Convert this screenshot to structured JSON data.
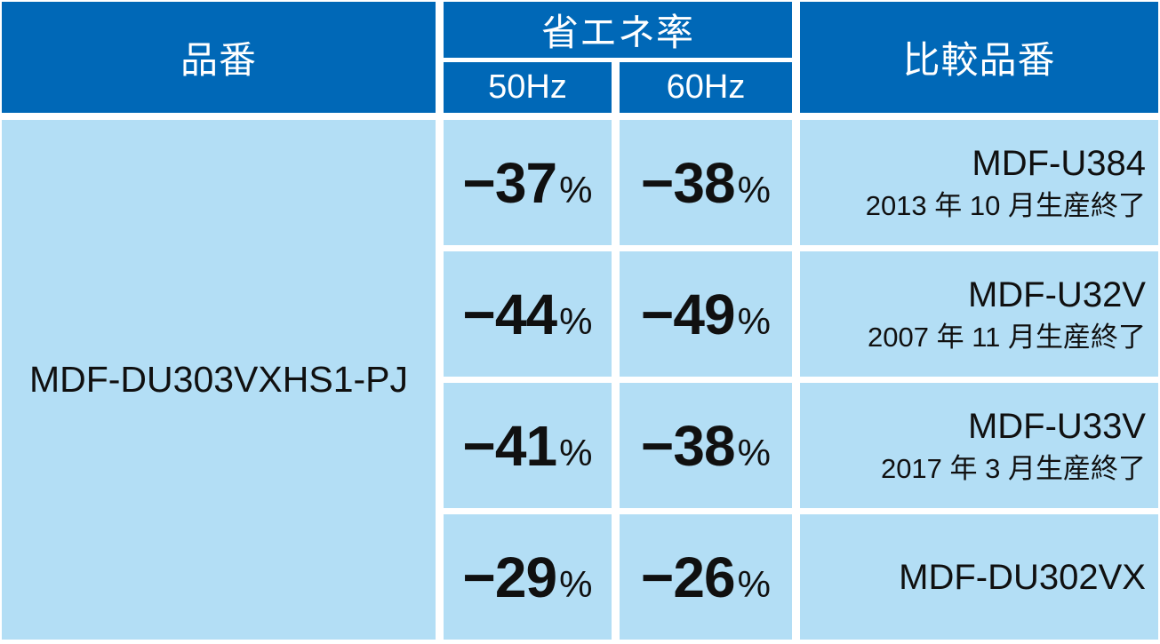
{
  "colors": {
    "header_bg": "#0068b7",
    "body_bg": "#b3def5",
    "header_text": "#ffffff",
    "body_text": "#101010"
  },
  "chart_data": {
    "type": "table",
    "header": {
      "product_col": "品番",
      "saving_col": "省エネ率",
      "hz50": "50Hz",
      "hz60": "60Hz",
      "comparison_col": "比較品番"
    },
    "product_model": "MDF-DU303VXHS1-PJ",
    "unit": "%",
    "rows": [
      {
        "saving_50hz": "−37",
        "saving_60hz": "−38",
        "comparison_model": "MDF-U384",
        "comparison_note": "2013 年 10 月生産終了"
      },
      {
        "saving_50hz": "−44",
        "saving_60hz": "−49",
        "comparison_model": "MDF-U32V",
        "comparison_note": "2007 年 11 月生産終了"
      },
      {
        "saving_50hz": "−41",
        "saving_60hz": "−38",
        "comparison_model": "MDF-U33V",
        "comparison_note": "2017 年 3 月生産終了"
      },
      {
        "saving_50hz": "−29",
        "saving_60hz": "−26",
        "comparison_model": "MDF-DU302VX"
      }
    ]
  }
}
